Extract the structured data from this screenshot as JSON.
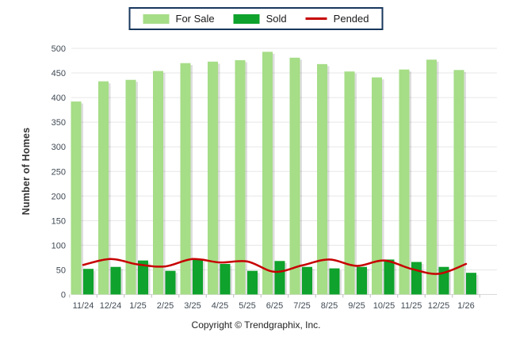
{
  "legend": {
    "items": [
      {
        "label": "For Sale",
        "color": "#A6DD87",
        "swatch": "bar"
      },
      {
        "label": "Sold",
        "color": "#0FA22C",
        "swatch": "bar"
      },
      {
        "label": "Pended",
        "color": "#C70000",
        "swatch": "line"
      }
    ]
  },
  "ylabel": "Number of Homes",
  "footer": "Copyright © Trendgraphix, Inc.",
  "chart_data": {
    "type": "bar",
    "categories": [
      "11/24",
      "12/24",
      "1/25",
      "2/25",
      "3/25",
      "4/25",
      "5/25",
      "6/25",
      "7/25",
      "8/25",
      "9/25",
      "10/25",
      "11/25",
      "12/25",
      "1/26"
    ],
    "series": [
      {
        "name": "For Sale",
        "type": "bar",
        "color": "#A6DD87",
        "values": [
          392,
          433,
          436,
          454,
          470,
          473,
          476,
          493,
          481,
          468,
          453,
          441,
          457,
          477,
          456
        ]
      },
      {
        "name": "Sold",
        "type": "bar",
        "color": "#0FA22C",
        "values": [
          52,
          56,
          69,
          48,
          71,
          62,
          48,
          68,
          56,
          53,
          56,
          71,
          66,
          56,
          44
        ]
      },
      {
        "name": "Pended",
        "type": "line",
        "color": "#C70000",
        "values": [
          60,
          72,
          61,
          57,
          72,
          65,
          67,
          46,
          59,
          71,
          58,
          69,
          52,
          42,
          62
        ]
      }
    ],
    "ylabel": "Number of Homes",
    "ylim": [
      0,
      500
    ],
    "ytick_step": 50,
    "grid": true,
    "legend_position": "top",
    "gridline_color": "#E7E7E7",
    "axis_text_color": "#404A54"
  }
}
